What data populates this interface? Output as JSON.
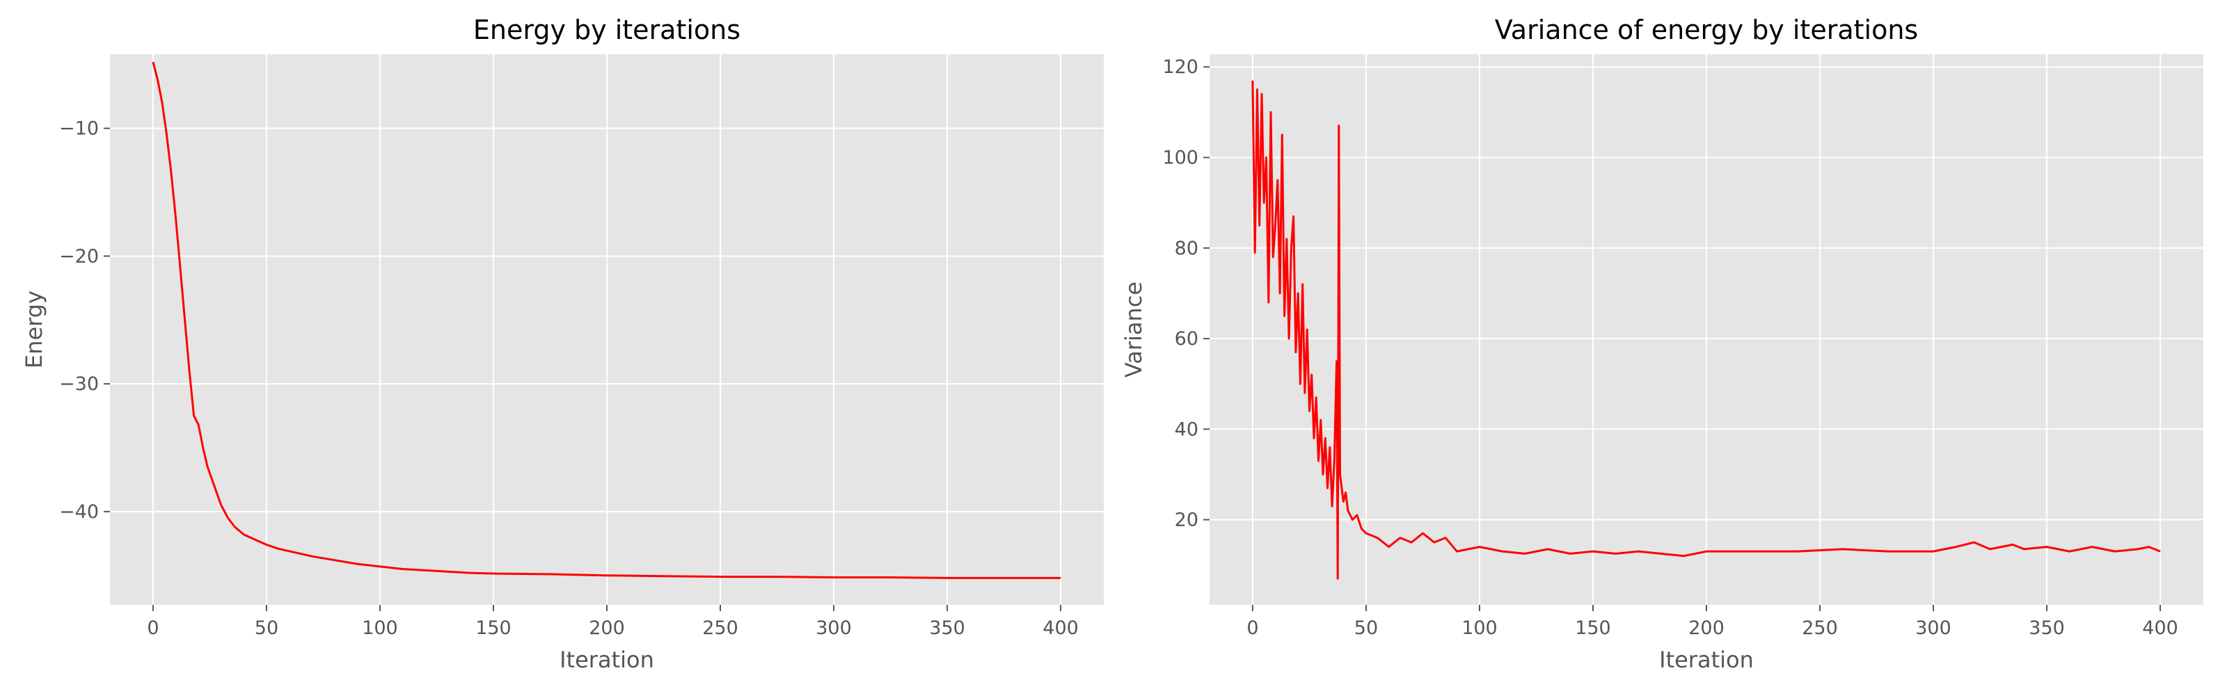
{
  "chart_data": [
    {
      "type": "line",
      "title": "Energy by iterations",
      "xlabel": "Iteration",
      "ylabel": "Energy",
      "xlim": [
        -19,
        419
      ],
      "ylim": [
        -47.3,
        -4.2
      ],
      "xticks": [
        0,
        50,
        100,
        150,
        200,
        250,
        300,
        350,
        400
      ],
      "yticks": [
        -10,
        -20,
        -30,
        -40
      ],
      "xticklabels": [
        "0",
        "50",
        "100",
        "150",
        "200",
        "250",
        "300",
        "350",
        "400"
      ],
      "yticklabels": [
        "−10",
        "−20",
        "−30",
        "−40"
      ],
      "grid": true,
      "series": [
        {
          "color": "#ff0000",
          "x": [
            0,
            2,
            4,
            6,
            8,
            10,
            12,
            14,
            16,
            18,
            20,
            22,
            24,
            26,
            28,
            30,
            33,
            36,
            40,
            45,
            50,
            55,
            60,
            65,
            70,
            80,
            90,
            100,
            110,
            120,
            130,
            140,
            150,
            175,
            200,
            225,
            250,
            275,
            300,
            325,
            350,
            375,
            400
          ],
          "y": [
            -4.8,
            -6.2,
            -8.0,
            -10.5,
            -13.5,
            -17.0,
            -21.0,
            -25.0,
            -29.0,
            -32.5,
            -33.2,
            -35.0,
            -36.5,
            -37.5,
            -38.5,
            -39.5,
            -40.5,
            -41.2,
            -41.8,
            -42.2,
            -42.6,
            -42.9,
            -43.1,
            -43.3,
            -43.5,
            -43.8,
            -44.1,
            -44.3,
            -44.5,
            -44.6,
            -44.7,
            -44.8,
            -44.85,
            -44.9,
            -45.0,
            -45.05,
            -45.1,
            -45.1,
            -45.15,
            -45.15,
            -45.2,
            -45.2,
            -45.2
          ]
        }
      ]
    },
    {
      "type": "line",
      "title": "Variance of energy by iterations",
      "xlabel": "Iteration",
      "ylabel": "Variance",
      "xlim": [
        -19,
        419
      ],
      "ylim": [
        1.2,
        122.8
      ],
      "xticks": [
        0,
        50,
        100,
        150,
        200,
        250,
        300,
        350,
        400
      ],
      "yticks": [
        20,
        40,
        60,
        80,
        100,
        120
      ],
      "xticklabels": [
        "0",
        "50",
        "100",
        "150",
        "200",
        "250",
        "300",
        "350",
        "400"
      ],
      "yticklabels": [
        "20",
        "40",
        "60",
        "80",
        "100",
        "120"
      ],
      "grid": true,
      "series": [
        {
          "color": "#ff0000",
          "x": [
            0,
            1,
            2,
            3,
            4,
            5,
            6,
            7,
            8,
            9,
            10,
            11,
            12,
            13,
            14,
            15,
            16,
            17,
            18,
            19,
            20,
            21,
            22,
            23,
            24,
            25,
            26,
            27,
            28,
            29,
            30,
            31,
            32,
            33,
            34,
            35,
            36,
            37,
            37.5,
            38,
            38.5,
            39,
            40,
            41,
            42,
            44,
            46,
            48,
            50,
            55,
            60,
            65,
            70,
            75,
            80,
            85,
            90,
            100,
            110,
            120,
            130,
            140,
            150,
            160,
            170,
            180,
            190,
            200,
            220,
            240,
            260,
            280,
            300,
            310,
            318,
            325,
            335,
            340,
            350,
            360,
            370,
            380,
            390,
            395,
            400
          ],
          "y": [
            117,
            79,
            115,
            85,
            114,
            90,
            100,
            68,
            110,
            78,
            85,
            95,
            70,
            105,
            65,
            82,
            60,
            80,
            87,
            57,
            70,
            50,
            72,
            48,
            62,
            44,
            52,
            38,
            47,
            33,
            42,
            30,
            38,
            27,
            36,
            23,
            33,
            55,
            7,
            107,
            30,
            28,
            24,
            26,
            22,
            20,
            21,
            18,
            17,
            16,
            14,
            16,
            15,
            17,
            15,
            16,
            13,
            14,
            13,
            12.5,
            13.5,
            12.5,
            13,
            12.5,
            13,
            12.5,
            12,
            13,
            13,
            13,
            13.5,
            13,
            13,
            14,
            15,
            13.5,
            14.5,
            13.5,
            14,
            13,
            14,
            13,
            13.5,
            14,
            13
          ]
        }
      ]
    }
  ]
}
